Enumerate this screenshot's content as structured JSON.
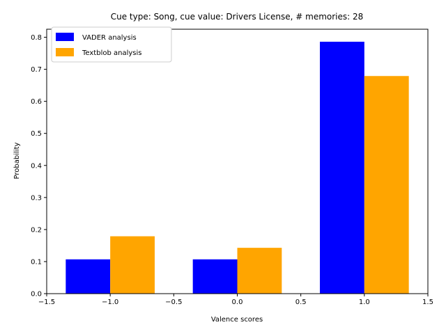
{
  "chart_data": {
    "type": "bar",
    "title": "Cue type: Song, cue value: Drivers License, # memories: 28",
    "xlabel": "Valence scores",
    "ylabel": "Probability",
    "xlim": [
      -1.5,
      1.5
    ],
    "ylim": [
      0,
      0.825
    ],
    "x": [
      -1.0,
      0.0,
      1.0
    ],
    "bar_width": 0.35,
    "xticks": [
      "−1.5",
      "−1.0",
      "−0.5",
      "0.0",
      "0.5",
      "1.0",
      "1.5"
    ],
    "yticks": [
      "0.0",
      "0.1",
      "0.2",
      "0.3",
      "0.4",
      "0.5",
      "0.6",
      "0.7",
      "0.8"
    ],
    "grid": false,
    "legend_position": "top-left",
    "series": [
      {
        "name": "VADER analysis",
        "color": "#0000ff",
        "values": [
          0.107,
          0.107,
          0.786
        ]
      },
      {
        "name": "Textblob analysis",
        "color": "#ffa500",
        "values": [
          0.179,
          0.143,
          0.679
        ]
      }
    ]
  }
}
